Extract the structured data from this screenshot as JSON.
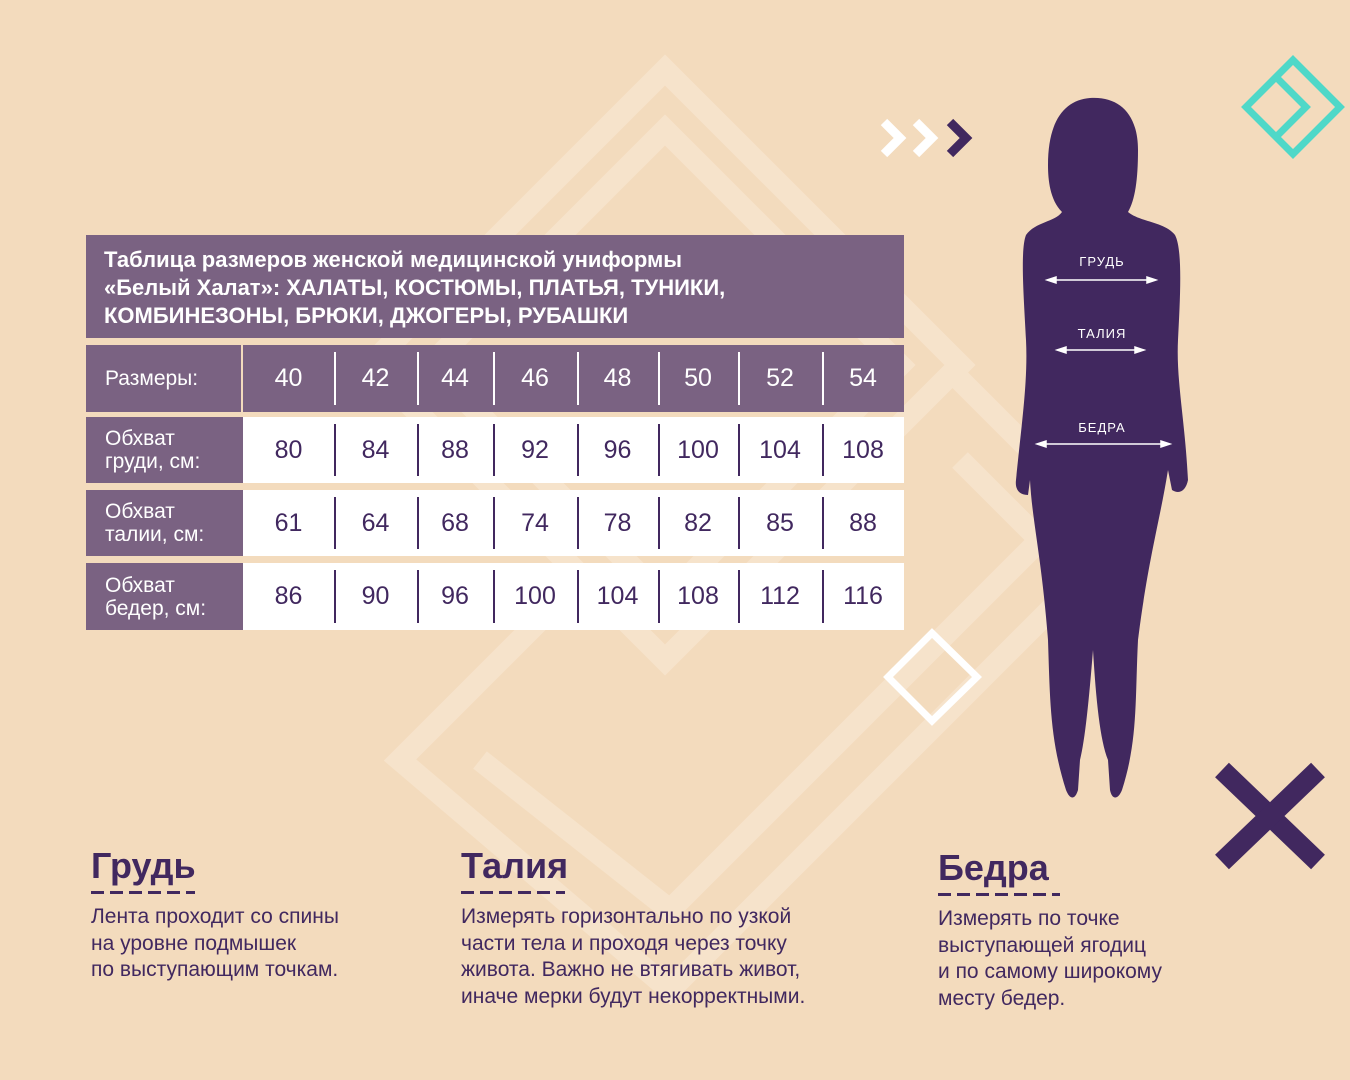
{
  "table": {
    "title_lines": [
      "Таблица размеров женской медицинской униформы",
      "«Белый Халат»: ХАЛАТЫ, КОСТЮМЫ, ПЛАТЬЯ, ТУНИКИ,",
      "КОМБИНЕЗОНЫ, БРЮКИ, ДЖОГЕРЫ, РУБАШКИ"
    ],
    "sizes_label": "Размеры:",
    "sizes": [
      "40",
      "42",
      "44",
      "46",
      "48",
      "50",
      "52",
      "54"
    ],
    "rows": [
      {
        "label_lines": [
          "Обхват",
          "груди, см:"
        ],
        "values": [
          "80",
          "84",
          "88",
          "92",
          "96",
          "100",
          "104",
          "108"
        ]
      },
      {
        "label_lines": [
          "Обхват",
          "талии, см:"
        ],
        "values": [
          "61",
          "64",
          "68",
          "74",
          "78",
          "82",
          "85",
          "88"
        ]
      },
      {
        "label_lines": [
          "Обхват",
          "бедер, см:"
        ],
        "values": [
          "86",
          "90",
          "96",
          "100",
          "104",
          "108",
          "112",
          "116"
        ]
      }
    ]
  },
  "figure": {
    "labels": [
      "ГРУДЬ",
      "ТАЛИЯ",
      "БЕДРА"
    ]
  },
  "sections": [
    {
      "title": "Грудь",
      "lines": [
        "Лента проходит со спины",
        "на уровне подмышек",
        "по выступающим точкам."
      ]
    },
    {
      "title": "Талия",
      "lines": [
        "Измерять горизонтально по узкой",
        "части тела и проходя через точку",
        "живота. Важно не втягивать живот,",
        "иначе мерки будут некорректными."
      ]
    },
    {
      "title": "Бедра",
      "lines": [
        "Измерять по точке",
        "выступающей ягодиц",
        "и по самому широкому",
        "месту бедер."
      ]
    }
  ],
  "colors": {
    "background": "#f3dbbd",
    "purple": "#41285f",
    "table_header": "#7a6282",
    "teal": "#4fd8c8"
  }
}
